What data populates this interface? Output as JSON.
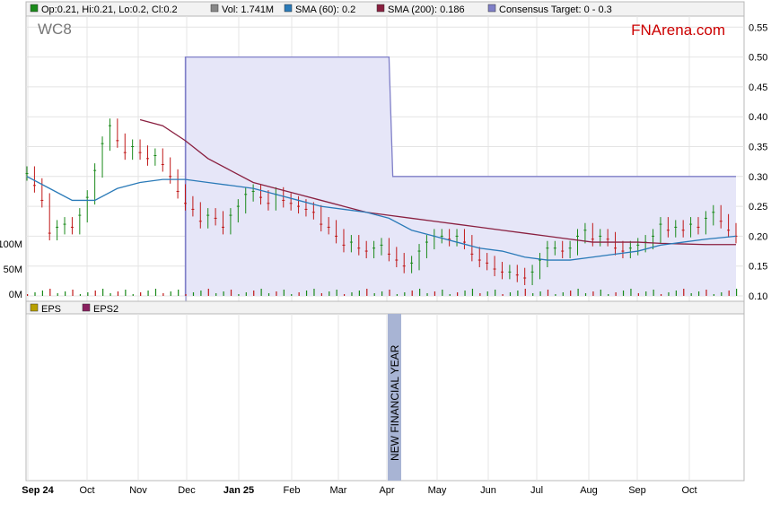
{
  "ticker": "WC8",
  "brand": "FNArena.com",
  "legend_top": [
    {
      "label": "Op:0.21, Hi:0.21, Lo:0.2, Cl:0.2",
      "color": "#1a8a1a"
    },
    {
      "label": "Vol: 1.741M",
      "color": "#888888"
    },
    {
      "label": "SMA (60): 0.2",
      "color": "#2a7ab8"
    },
    {
      "label": "SMA (200): 0.186",
      "color": "#8a2040"
    },
    {
      "label": "Consensus Target: 0 - 0.3",
      "color": "#7f7fc8"
    }
  ],
  "legend_bottom": [
    {
      "label": "EPS",
      "color": "#b8a000"
    },
    {
      "label": "EPS2",
      "color": "#8a2060"
    }
  ],
  "annotation": "NEW FINANCIAL YEAR",
  "y_ticks": [
    "0.55",
    "0.50",
    "0.45",
    "0.40",
    "0.35",
    "0.30",
    "0.25",
    "0.20",
    "0.15",
    "0.10"
  ],
  "volume_ticks": [
    "100M",
    "50M",
    "0M"
  ],
  "months": [
    {
      "label": "Sep 24",
      "bold": true
    },
    {
      "label": "Oct",
      "bold": false
    },
    {
      "label": "Nov",
      "bold": false
    },
    {
      "label": "Dec",
      "bold": false
    },
    {
      "label": "Jan 25",
      "bold": true
    },
    {
      "label": "Feb",
      "bold": false
    },
    {
      "label": "Mar",
      "bold": false
    },
    {
      "label": "Apr",
      "bold": false
    },
    {
      "label": "May",
      "bold": false
    },
    {
      "label": "Jun",
      "bold": false
    },
    {
      "label": "Jul",
      "bold": false
    },
    {
      "label": "Aug",
      "bold": false
    },
    {
      "label": "Sep",
      "bold": false
    },
    {
      "label": "Oct",
      "bold": false
    }
  ],
  "colors": {
    "up": "#1a8a1a",
    "down": "#c01818",
    "sma60": "#2a7ab8",
    "sma200": "#8a2040",
    "target_fill": "#e6e6f8",
    "target_line": "#7f7fc8",
    "annotation_bar": "#a8b4d4"
  },
  "chart_data": {
    "type": "line",
    "ylim": [
      0.1,
      0.56
    ],
    "price_close": [
      [
        0,
        0.305
      ],
      [
        2,
        0.285
      ],
      [
        4,
        0.26
      ],
      [
        6,
        0.205
      ],
      [
        8,
        0.215
      ],
      [
        10,
        0.22
      ],
      [
        12,
        0.215
      ],
      [
        14,
        0.235
      ],
      [
        16,
        0.265
      ],
      [
        18,
        0.31
      ],
      [
        20,
        0.355
      ],
      [
        22,
        0.385
      ],
      [
        24,
        0.36
      ],
      [
        26,
        0.34
      ],
      [
        28,
        0.35
      ],
      [
        30,
        0.34
      ],
      [
        32,
        0.33
      ],
      [
        34,
        0.335
      ],
      [
        36,
        0.32
      ],
      [
        38,
        0.3
      ],
      [
        40,
        0.275
      ],
      [
        42,
        0.255
      ],
      [
        44,
        0.245
      ],
      [
        46,
        0.225
      ],
      [
        48,
        0.235
      ],
      [
        50,
        0.23
      ],
      [
        52,
        0.215
      ],
      [
        54,
        0.235
      ],
      [
        56,
        0.25
      ],
      [
        58,
        0.27
      ],
      [
        60,
        0.275
      ],
      [
        62,
        0.265
      ],
      [
        64,
        0.255
      ],
      [
        66,
        0.27
      ],
      [
        68,
        0.26
      ],
      [
        70,
        0.255
      ],
      [
        72,
        0.25
      ],
      [
        74,
        0.245
      ],
      [
        76,
        0.24
      ],
      [
        78,
        0.22
      ],
      [
        80,
        0.215
      ],
      [
        82,
        0.2
      ],
      [
        84,
        0.185
      ],
      [
        86,
        0.19
      ],
      [
        88,
        0.18
      ],
      [
        90,
        0.175
      ],
      [
        92,
        0.18
      ],
      [
        94,
        0.185
      ],
      [
        96,
        0.17
      ],
      [
        98,
        0.16
      ],
      [
        100,
        0.15
      ],
      [
        102,
        0.155
      ],
      [
        104,
        0.175
      ],
      [
        106,
        0.19
      ],
      [
        108,
        0.2
      ],
      [
        110,
        0.2
      ],
      [
        112,
        0.195
      ],
      [
        114,
        0.2
      ],
      [
        116,
        0.19
      ],
      [
        118,
        0.17
      ],
      [
        120,
        0.16
      ],
      [
        122,
        0.155
      ],
      [
        124,
        0.145
      ],
      [
        126,
        0.14
      ],
      [
        128,
        0.14
      ],
      [
        130,
        0.135
      ],
      [
        132,
        0.13
      ],
      [
        134,
        0.14
      ],
      [
        136,
        0.16
      ],
      [
        138,
        0.18
      ],
      [
        140,
        0.18
      ],
      [
        142,
        0.175
      ],
      [
        144,
        0.18
      ],
      [
        146,
        0.2
      ],
      [
        148,
        0.21
      ],
      [
        150,
        0.195
      ],
      [
        152,
        0.2
      ],
      [
        154,
        0.195
      ],
      [
        156,
        0.18
      ],
      [
        158,
        0.175
      ],
      [
        160,
        0.18
      ],
      [
        162,
        0.185
      ],
      [
        164,
        0.19
      ],
      [
        166,
        0.2
      ],
      [
        168,
        0.22
      ],
      [
        170,
        0.21
      ],
      [
        172,
        0.215
      ],
      [
        174,
        0.21
      ],
      [
        176,
        0.22
      ],
      [
        178,
        0.215
      ],
      [
        180,
        0.23
      ],
      [
        182,
        0.24
      ],
      [
        184,
        0.225
      ],
      [
        186,
        0.21
      ],
      [
        188,
        0.2
      ]
    ],
    "sma60": [
      [
        0,
        0.3
      ],
      [
        6,
        0.28
      ],
      [
        12,
        0.26
      ],
      [
        18,
        0.26
      ],
      [
        24,
        0.28
      ],
      [
        30,
        0.29
      ],
      [
        36,
        0.295
      ],
      [
        42,
        0.295
      ],
      [
        48,
        0.29
      ],
      [
        54,
        0.285
      ],
      [
        60,
        0.28
      ],
      [
        66,
        0.27
      ],
      [
        72,
        0.26
      ],
      [
        78,
        0.25
      ],
      [
        84,
        0.245
      ],
      [
        90,
        0.24
      ],
      [
        96,
        0.23
      ],
      [
        102,
        0.21
      ],
      [
        108,
        0.2
      ],
      [
        114,
        0.19
      ],
      [
        120,
        0.18
      ],
      [
        126,
        0.175
      ],
      [
        132,
        0.165
      ],
      [
        138,
        0.16
      ],
      [
        144,
        0.16
      ],
      [
        150,
        0.165
      ],
      [
        156,
        0.17
      ],
      [
        162,
        0.175
      ],
      [
        168,
        0.185
      ],
      [
        174,
        0.19
      ],
      [
        180,
        0.195
      ],
      [
        188,
        0.2
      ]
    ],
    "sma200": [
      [
        30,
        0.395
      ],
      [
        36,
        0.385
      ],
      [
        42,
        0.36
      ],
      [
        48,
        0.33
      ],
      [
        54,
        0.31
      ],
      [
        60,
        0.29
      ],
      [
        66,
        0.28
      ],
      [
        72,
        0.27
      ],
      [
        78,
        0.26
      ],
      [
        84,
        0.25
      ],
      [
        90,
        0.24
      ],
      [
        96,
        0.235
      ],
      [
        102,
        0.23
      ],
      [
        108,
        0.225
      ],
      [
        114,
        0.22
      ],
      [
        120,
        0.215
      ],
      [
        126,
        0.21
      ],
      [
        132,
        0.205
      ],
      [
        138,
        0.2
      ],
      [
        144,
        0.195
      ],
      [
        150,
        0.19
      ],
      [
        156,
        0.19
      ],
      [
        162,
        0.19
      ],
      [
        168,
        0.188
      ],
      [
        174,
        0.187
      ],
      [
        180,
        0.186
      ],
      [
        188,
        0.186
      ]
    ],
    "consensus_target": [
      [
        42,
        0.1
      ],
      [
        42,
        0.5
      ],
      [
        96,
        0.5
      ],
      [
        97,
        0.3
      ],
      [
        188,
        0.3
      ]
    ]
  }
}
